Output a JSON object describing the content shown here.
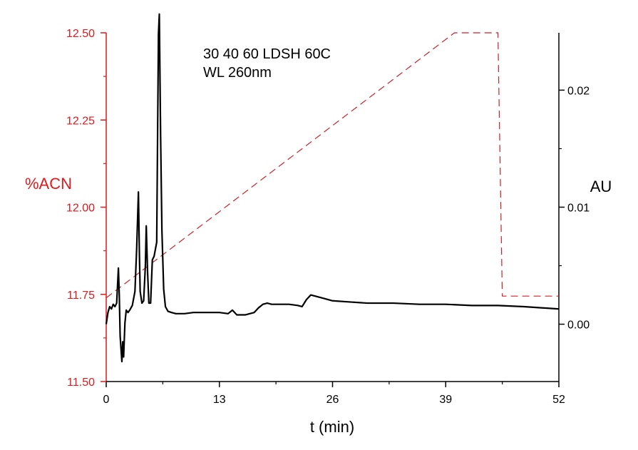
{
  "chart_data": {
    "type": "line",
    "annotation_lines": [
      "30 40 60 LDSH 60C",
      "WL 260nm"
    ],
    "xlabel": "t (min)",
    "ylabel_left": "%ACN",
    "ylabel_right": "AU",
    "xlim": [
      0,
      52
    ],
    "ylim_left": [
      11.5,
      12.5
    ],
    "ylim_right": [
      -0.0049,
      0.0249
    ],
    "x_ticks": [
      0,
      13,
      26,
      39,
      52
    ],
    "y_left_ticks": [
      11.5,
      11.75,
      12.0,
      12.25,
      12.5
    ],
    "y_left_tick_labels": [
      "11.50",
      "11.75",
      "12.00",
      "12.25",
      "12.50"
    ],
    "y_right_ticks": [
      0.0,
      0.01,
      0.02
    ],
    "y_right_tick_labels": [
      "0.00",
      "0.01",
      "0.02"
    ],
    "grid": false,
    "colors": {
      "left_axis": "#e0191e",
      "gradient": "#cc1f28",
      "trace": "#000000",
      "right_axis": "#000000"
    },
    "series": [
      {
        "axis": "left",
        "style": "dashed",
        "x": [
          0,
          40,
          45,
          45.5,
          52
        ],
        "y": [
          11.74,
          12.5,
          12.5,
          11.745,
          11.745
        ]
      },
      {
        "axis": "right",
        "style": "solid",
        "x": [
          0.0,
          0.2,
          0.4,
          0.6,
          0.8,
          1.0,
          1.2,
          1.4,
          1.5,
          1.6,
          1.8,
          1.9,
          2.0,
          2.15,
          2.3,
          2.5,
          2.7,
          3.0,
          3.3,
          3.5,
          3.7,
          3.8,
          3.9,
          4.1,
          4.3,
          4.5,
          4.6,
          4.75,
          4.9,
          5.1,
          5.3,
          5.5,
          5.8,
          6.0,
          6.1,
          6.25,
          6.4,
          6.6,
          6.8,
          7.1,
          7.5,
          8,
          9,
          10,
          11,
          12,
          13,
          14,
          14.5,
          15,
          16,
          17,
          17.5,
          18,
          18.5,
          19,
          20,
          21,
          22,
          22.5,
          23,
          23.5,
          24,
          25,
          26,
          28,
          30,
          33,
          36,
          39,
          42,
          45,
          48,
          52
        ],
        "y": [
          0.0,
          0.001,
          0.0015,
          0.0013,
          0.0017,
          0.0015,
          0.0018,
          0.0048,
          0.0025,
          -0.001,
          -0.0032,
          -0.0015,
          -0.0028,
          0.0001,
          0.0012,
          0.001,
          0.0012,
          0.0016,
          0.0028,
          0.0065,
          0.0113,
          0.0065,
          0.0028,
          0.0018,
          0.002,
          0.005,
          0.0084,
          0.0045,
          0.0018,
          0.0018,
          0.0055,
          0.0058,
          0.007,
          0.0248,
          0.0265,
          0.016,
          0.008,
          0.003,
          0.0015,
          0.0011,
          0.001,
          0.0009,
          0.0009,
          0.001,
          0.001,
          0.001,
          0.001,
          0.0009,
          0.0012,
          0.0008,
          0.0008,
          0.001,
          0.0014,
          0.0017,
          0.0018,
          0.0017,
          0.0017,
          0.0017,
          0.0016,
          0.0015,
          0.0021,
          0.0025,
          0.0024,
          0.0022,
          0.002,
          0.0019,
          0.0018,
          0.0018,
          0.0017,
          0.0017,
          0.0016,
          0.0016,
          0.0015,
          0.0013
        ]
      }
    ]
  }
}
